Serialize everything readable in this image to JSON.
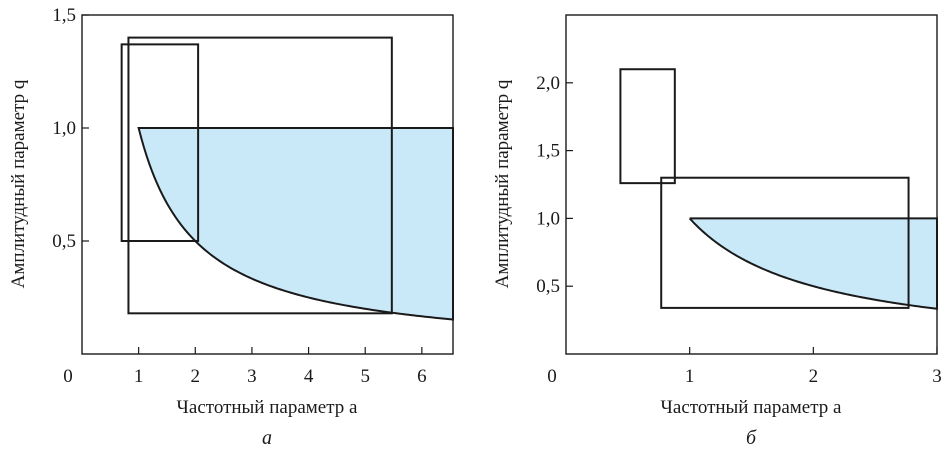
{
  "chart_data": [
    {
      "type": "area",
      "panel_label": "а",
      "xlabel": "Частотный параметр a",
      "ylabel": "Амплитудный параметр q",
      "xlim": [
        0,
        6.55
      ],
      "ylim": [
        0,
        1.5
      ],
      "x_ticks": [
        0,
        1,
        2,
        3,
        4,
        5,
        6
      ],
      "x_tick_labels": [
        "0",
        "1",
        "2",
        "3",
        "4",
        "5",
        "6"
      ],
      "y_ticks": [
        0.5,
        1.0,
        1.5
      ],
      "y_tick_labels": [
        "0,5",
        "1,0",
        "1,5"
      ],
      "region": {
        "fill": "#c9e8f8",
        "upper_q": 1.0,
        "lower_curve": "q = 1/a",
        "x_from": 1.0,
        "x_to": 6.55
      },
      "rectangles": [
        {
          "x": [
            0.7,
            2.05
          ],
          "y": [
            0.5,
            1.37
          ]
        },
        {
          "x": [
            0.82,
            5.47
          ],
          "y": [
            0.18,
            1.4
          ]
        }
      ]
    },
    {
      "type": "area",
      "panel_label": "б",
      "xlabel": "Частотный параметр a",
      "ylabel": "Амплитудный параметр q",
      "xlim": [
        0,
        3.0
      ],
      "ylim": [
        0,
        2.5
      ],
      "x_ticks": [
        0,
        1,
        2,
        3
      ],
      "x_tick_labels": [
        "0",
        "1",
        "2",
        "3"
      ],
      "y_ticks": [
        0.5,
        1.0,
        1.5,
        2.0
      ],
      "y_tick_labels": [
        "0,5",
        "1,0",
        "1,5",
        "2,0"
      ],
      "region": {
        "fill": "#c9e8f8",
        "upper_q": 1.0,
        "lower_curve": "q = 1/a",
        "x_from": 1.0,
        "x_to": 3.0
      },
      "rectangles": [
        {
          "x": [
            0.44,
            0.88
          ],
          "y": [
            1.26,
            2.1
          ]
        },
        {
          "x": [
            0.77,
            2.77
          ],
          "y": [
            0.34,
            1.3
          ]
        }
      ]
    }
  ]
}
